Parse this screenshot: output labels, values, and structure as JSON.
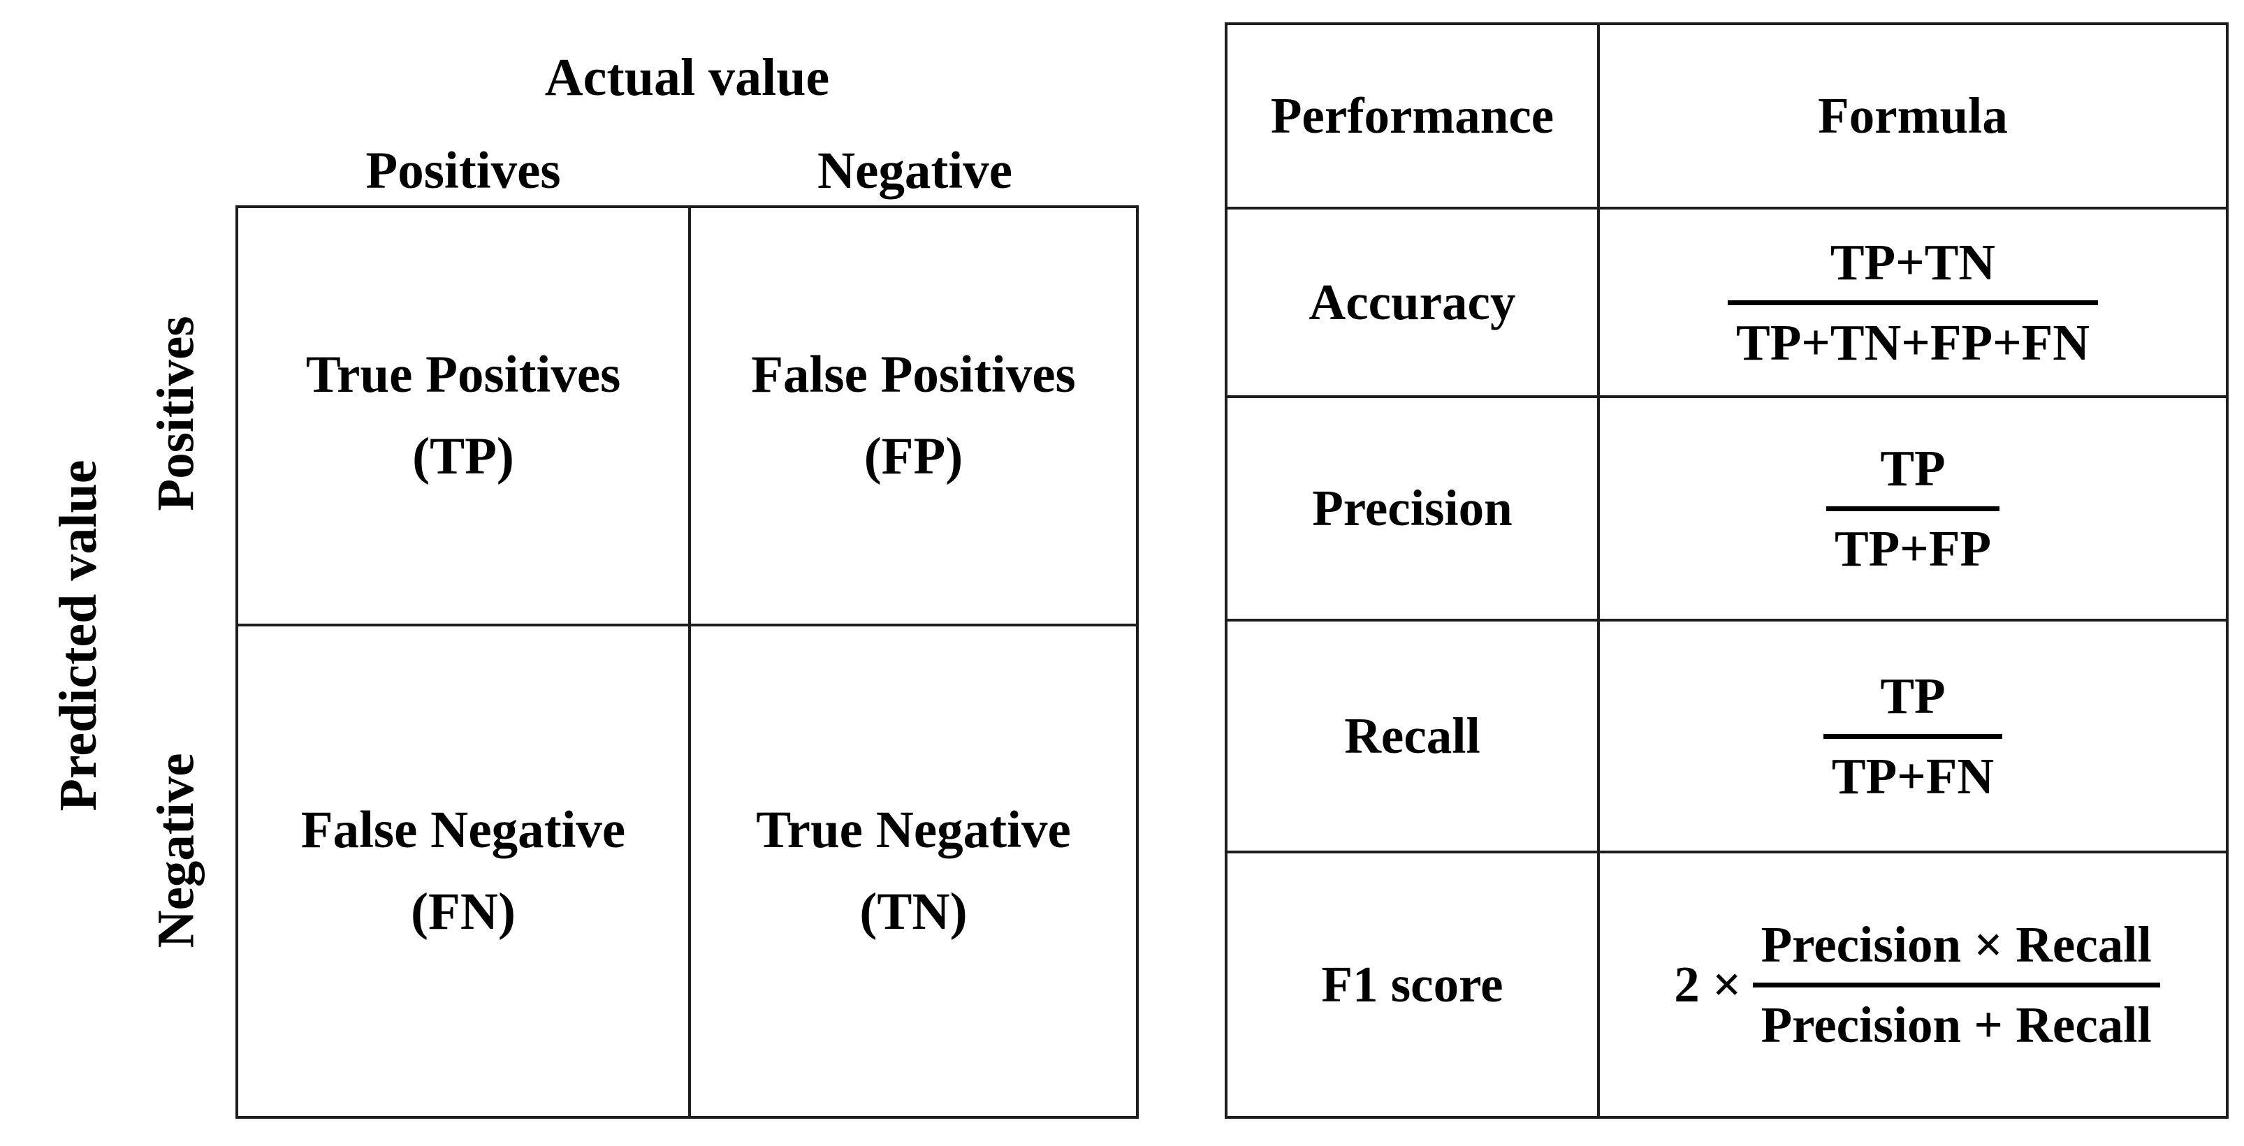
{
  "confusion_matrix": {
    "x_axis_title": "Actual value",
    "y_axis_title": "Predicted value",
    "col_labels": [
      "Positives",
      "Negative"
    ],
    "row_labels": [
      "Positives",
      "Negative"
    ],
    "cells": [
      {
        "label": "True Positives",
        "abbr": "(TP)"
      },
      {
        "label": "False Positives",
        "abbr": "(FP)"
      },
      {
        "label": "False Negative",
        "abbr": "(FN)"
      },
      {
        "label": "True Negative",
        "abbr": "(TN)"
      }
    ]
  },
  "metrics_table": {
    "headers": [
      "Performance",
      "Formula"
    ],
    "rows": [
      {
        "metric": "Accuracy",
        "prefix": "",
        "numerator": "TP+TN",
        "denominator": "TP+TN+FP+FN"
      },
      {
        "metric": "Precision",
        "prefix": "",
        "numerator": "TP",
        "denominator": "TP+FP"
      },
      {
        "metric": "Recall",
        "prefix": "",
        "numerator": "TP",
        "denominator": "TP+FN"
      },
      {
        "metric": "F1 score",
        "prefix": "2 ×",
        "numerator": "Precision × Recall",
        "denominator": "Precision + Recall"
      }
    ]
  },
  "colors": {
    "background": "#ffffff",
    "text": "#000000",
    "line": "#1d1d1d"
  }
}
